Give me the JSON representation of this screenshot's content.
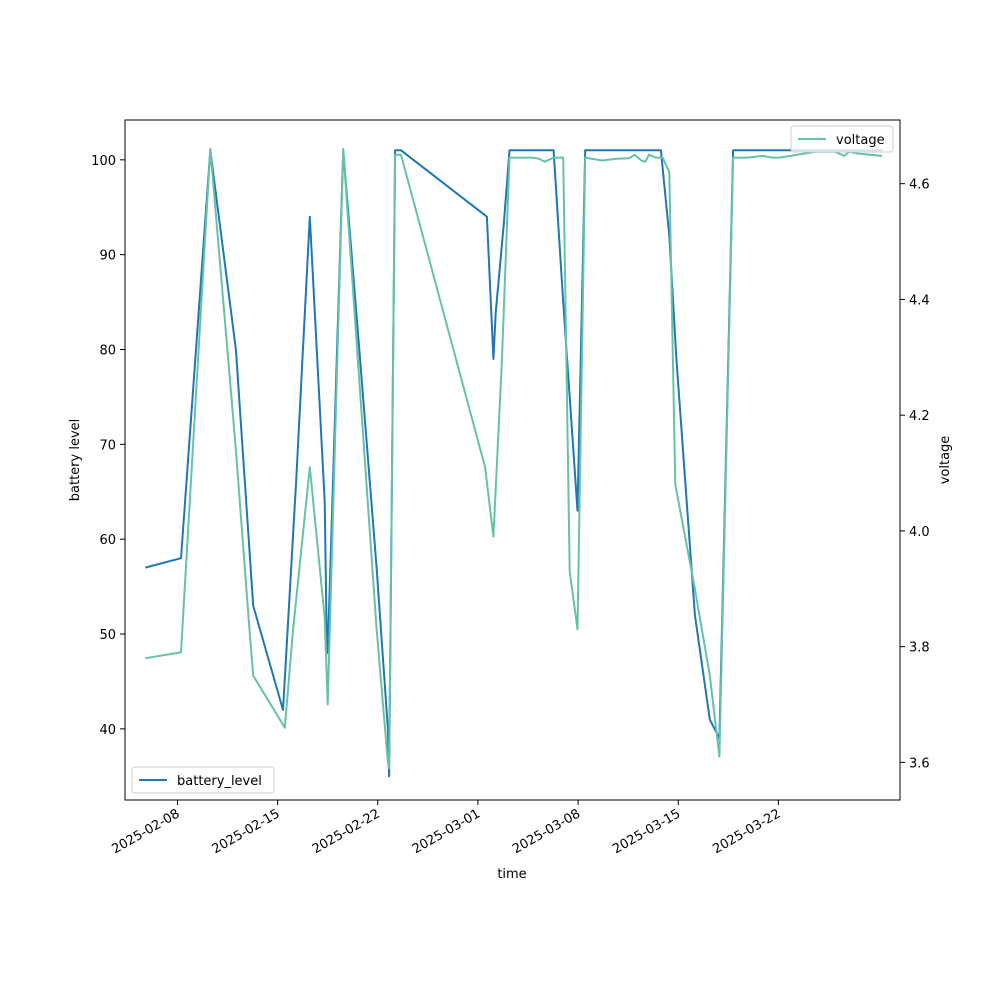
{
  "chart_data": {
    "type": "line",
    "xlabel": "time",
    "ylabel_left": "battery level",
    "ylabel_right": "voltage",
    "x_ticks": [
      "2025-02-08",
      "2025-02-15",
      "2025-02-22",
      "2025-03-01",
      "2025-03-08",
      "2025-03-15",
      "2025-03-22"
    ],
    "y_left_ticks": [
      "40",
      "50",
      "60",
      "70",
      "80",
      "90",
      "100"
    ],
    "y_right_ticks": [
      "3.6",
      "3.8",
      "4.0",
      "4.2",
      "4.4",
      "4.6"
    ],
    "ylim_left": [
      32.5,
      104.2
    ],
    "ylim_right": [
      3.535,
      4.71
    ],
    "xlim": [
      "2025-02-04T08:00",
      "2025-03-30T12:00"
    ],
    "grid": false,
    "colors": {
      "battery_level": "#1f77b4",
      "voltage": "#66c2a5"
    },
    "series": [
      {
        "name": "battery_level",
        "axis": "left",
        "x": [
          "2025-02-05T18:00",
          "2025-02-08T06:00",
          "2025-02-10T07:00",
          "2025-02-12T02:00",
          "2025-02-13T07:00",
          "2025-02-15T09:00",
          "2025-02-16T07:00",
          "2025-02-17T06:00",
          "2025-02-18T07:00",
          "2025-02-18T10:00",
          "2025-02-18T12:00",
          "2025-02-19T14:00",
          "2025-02-20T17:00",
          "2025-02-21T22:00",
          "2025-02-22T17:00",
          "2025-02-22T19:00",
          "2025-02-23T05:00",
          "2025-02-23T15:00",
          "2025-03-01T15:00",
          "2025-03-02T02:00",
          "2025-03-02T06:00",
          "2025-03-02T19:00",
          "2025-03-03T05:00",
          "2025-03-06T07:00",
          "2025-03-06T23:00",
          "2025-03-07T23:00",
          "2025-03-08T12:00",
          "2025-03-13T19:00",
          "2025-03-14T09:00",
          "2025-03-14T21:00",
          "2025-03-16T04:00",
          "2025-03-17T05:00",
          "2025-03-17T21:00",
          "2025-03-18T20:00",
          "2025-03-22T02:00",
          "2025-03-29T06:00"
        ],
        "values": [
          57,
          58,
          101,
          80,
          53,
          42,
          66,
          94,
          64,
          51,
          48,
          101,
          80,
          57,
          40,
          35,
          101,
          101,
          94,
          79,
          84,
          93,
          101,
          101,
          85,
          63,
          101,
          101,
          92,
          79,
          52,
          41,
          39,
          101,
          101,
          101
        ]
      },
      {
        "name": "voltage",
        "axis": "right",
        "x": [
          "2025-02-05T18:00",
          "2025-02-08T06:00",
          "2025-02-10T07:00",
          "2025-02-12T02:00",
          "2025-02-13T00:00",
          "2025-02-13T07:00",
          "2025-02-15T12:00",
          "2025-02-16T02:00",
          "2025-02-17T06:00",
          "2025-02-18T07:00",
          "2025-02-18T12:00",
          "2025-02-19T14:00",
          "2025-02-21T22:00",
          "2025-02-22T17:00",
          "2025-02-22T19:00",
          "2025-02-23T05:00",
          "2025-02-23T15:00",
          "2025-03-01T12:00",
          "2025-03-02T02:00",
          "2025-03-02T16:00",
          "2025-03-03T05:00",
          "2025-03-04T19:00",
          "2025-03-05T07:00",
          "2025-03-05T16:00",
          "2025-03-06T07:00",
          "2025-03-06T23:00",
          "2025-03-07T10:00",
          "2025-03-07T23:00",
          "2025-03-08T12:00",
          "2025-03-09T16:00",
          "2025-03-10T17:00",
          "2025-03-11T14:00",
          "2025-03-11T23:00",
          "2025-03-12T10:00",
          "2025-03-12T17:00",
          "2025-03-12T23:00",
          "2025-03-13T10:00",
          "2025-03-13T22:00",
          "2025-03-14T09:00",
          "2025-03-14T19:00",
          "2025-03-16T04:00",
          "2025-03-17T05:00",
          "2025-03-17T21:00",
          "2025-03-18T20:00",
          "2025-03-19T20:00",
          "2025-03-20T22:00",
          "2025-03-21T14:00",
          "2025-03-22T02:00",
          "2025-03-24T14:00",
          "2025-03-25T07:00",
          "2025-03-25T23:00",
          "2025-03-26T10:00",
          "2025-03-26T14:00",
          "2025-03-26T23:00",
          "2025-03-27T14:00",
          "2025-03-29T06:00"
        ],
        "values": [
          3.78,
          3.79,
          4.66,
          4.14,
          3.84,
          3.75,
          3.66,
          3.83,
          4.11,
          3.85,
          3.7,
          4.66,
          3.83,
          3.6,
          3.59,
          4.65,
          4.65,
          4.11,
          3.99,
          4.29,
          4.645,
          4.645,
          4.643,
          4.638,
          4.645,
          4.645,
          3.93,
          3.83,
          4.645,
          4.64,
          4.643,
          4.644,
          4.65,
          4.64,
          4.638,
          4.65,
          4.645,
          4.645,
          4.62,
          4.08,
          3.9,
          3.75,
          3.61,
          4.645,
          4.645,
          4.648,
          4.645,
          4.645,
          4.655,
          4.655,
          4.655,
          4.65,
          4.648,
          4.655,
          4.652,
          4.648
        ]
      }
    ]
  }
}
